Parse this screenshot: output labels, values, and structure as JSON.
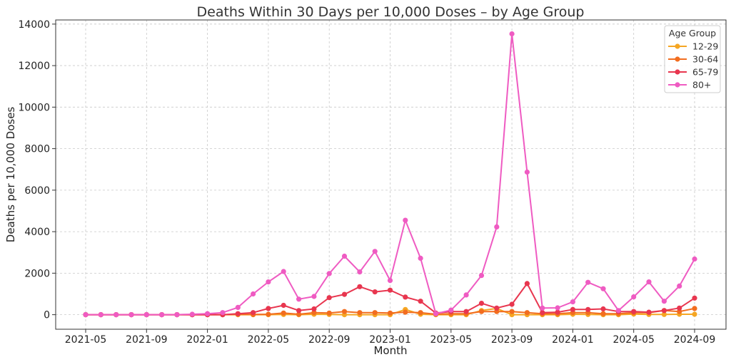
{
  "chart_data": {
    "type": "line",
    "title": "Deaths Within 30 Days per 10,000 Doses – by Age Group",
    "xlabel": "Month",
    "ylabel": "Deaths per 10,000 Doses",
    "ylim": [
      -700,
      14200
    ],
    "yticks": [
      0,
      2000,
      4000,
      6000,
      8000,
      10000,
      12000,
      14000
    ],
    "xticks": [
      "2021-05",
      "2021-09",
      "2022-01",
      "2022-05",
      "2022-09",
      "2023-01",
      "2023-05",
      "2023-09",
      "2024-01",
      "2024-05",
      "2024-09"
    ],
    "grid": true,
    "legend": {
      "title": "Age Group",
      "position": "top-right"
    },
    "x": [
      "2021-05",
      "2021-06",
      "2021-07",
      "2021-08",
      "2021-09",
      "2021-10",
      "2021-11",
      "2021-12",
      "2022-01",
      "2022-02",
      "2022-03",
      "2022-04",
      "2022-05",
      "2022-06",
      "2022-07",
      "2022-08",
      "2022-09",
      "2022-10",
      "2022-11",
      "2022-12",
      "2023-01",
      "2023-02",
      "2023-03",
      "2023-04",
      "2023-05",
      "2023-06",
      "2023-07",
      "2023-08",
      "2023-09",
      "2023-10",
      "2023-11",
      "2023-12",
      "2024-01",
      "2024-02",
      "2024-03",
      "2024-04",
      "2024-05",
      "2024-06",
      "2024-07",
      "2024-08",
      "2024-09"
    ],
    "series": [
      {
        "name": "12-29",
        "color": "#f5a623",
        "values": [
          0,
          0,
          0,
          0,
          0,
          0,
          0,
          0,
          0,
          0,
          0,
          0,
          0,
          10,
          0,
          20,
          10,
          0,
          0,
          0,
          0,
          250,
          20,
          0,
          0,
          0,
          200,
          300,
          0,
          0,
          0,
          0,
          20,
          10,
          0,
          0,
          30,
          10,
          10,
          20,
          20
        ]
      },
      {
        "name": "30-64",
        "color": "#f26d1f",
        "values": [
          0,
          0,
          0,
          0,
          0,
          0,
          0,
          0,
          0,
          0,
          20,
          10,
          20,
          80,
          20,
          100,
          80,
          150,
          100,
          100,
          80,
          120,
          100,
          20,
          50,
          50,
          150,
          150,
          150,
          100,
          50,
          50,
          100,
          100,
          50,
          50,
          100,
          100,
          200,
          150,
          300
        ]
      },
      {
        "name": "65-79",
        "color": "#e8364f",
        "values": [
          0,
          0,
          0,
          0,
          0,
          0,
          0,
          0,
          0,
          0,
          50,
          100,
          300,
          450,
          200,
          280,
          820,
          980,
          1350,
          1100,
          1180,
          850,
          650,
          80,
          150,
          150,
          550,
          320,
          500,
          1500,
          100,
          120,
          250,
          250,
          280,
          150,
          150,
          120,
          200,
          320,
          800
        ]
      },
      {
        "name": "80+",
        "color": "#ef5bc2",
        "values": [
          0,
          0,
          0,
          0,
          0,
          0,
          0,
          20,
          50,
          100,
          350,
          1000,
          1580,
          2080,
          750,
          880,
          1980,
          2820,
          2060,
          3050,
          1650,
          4550,
          2720,
          50,
          220,
          950,
          1890,
          4230,
          13530,
          6870,
          320,
          330,
          620,
          1560,
          1250,
          200,
          860,
          1580,
          650,
          1380,
          2680
        ]
      }
    ]
  }
}
